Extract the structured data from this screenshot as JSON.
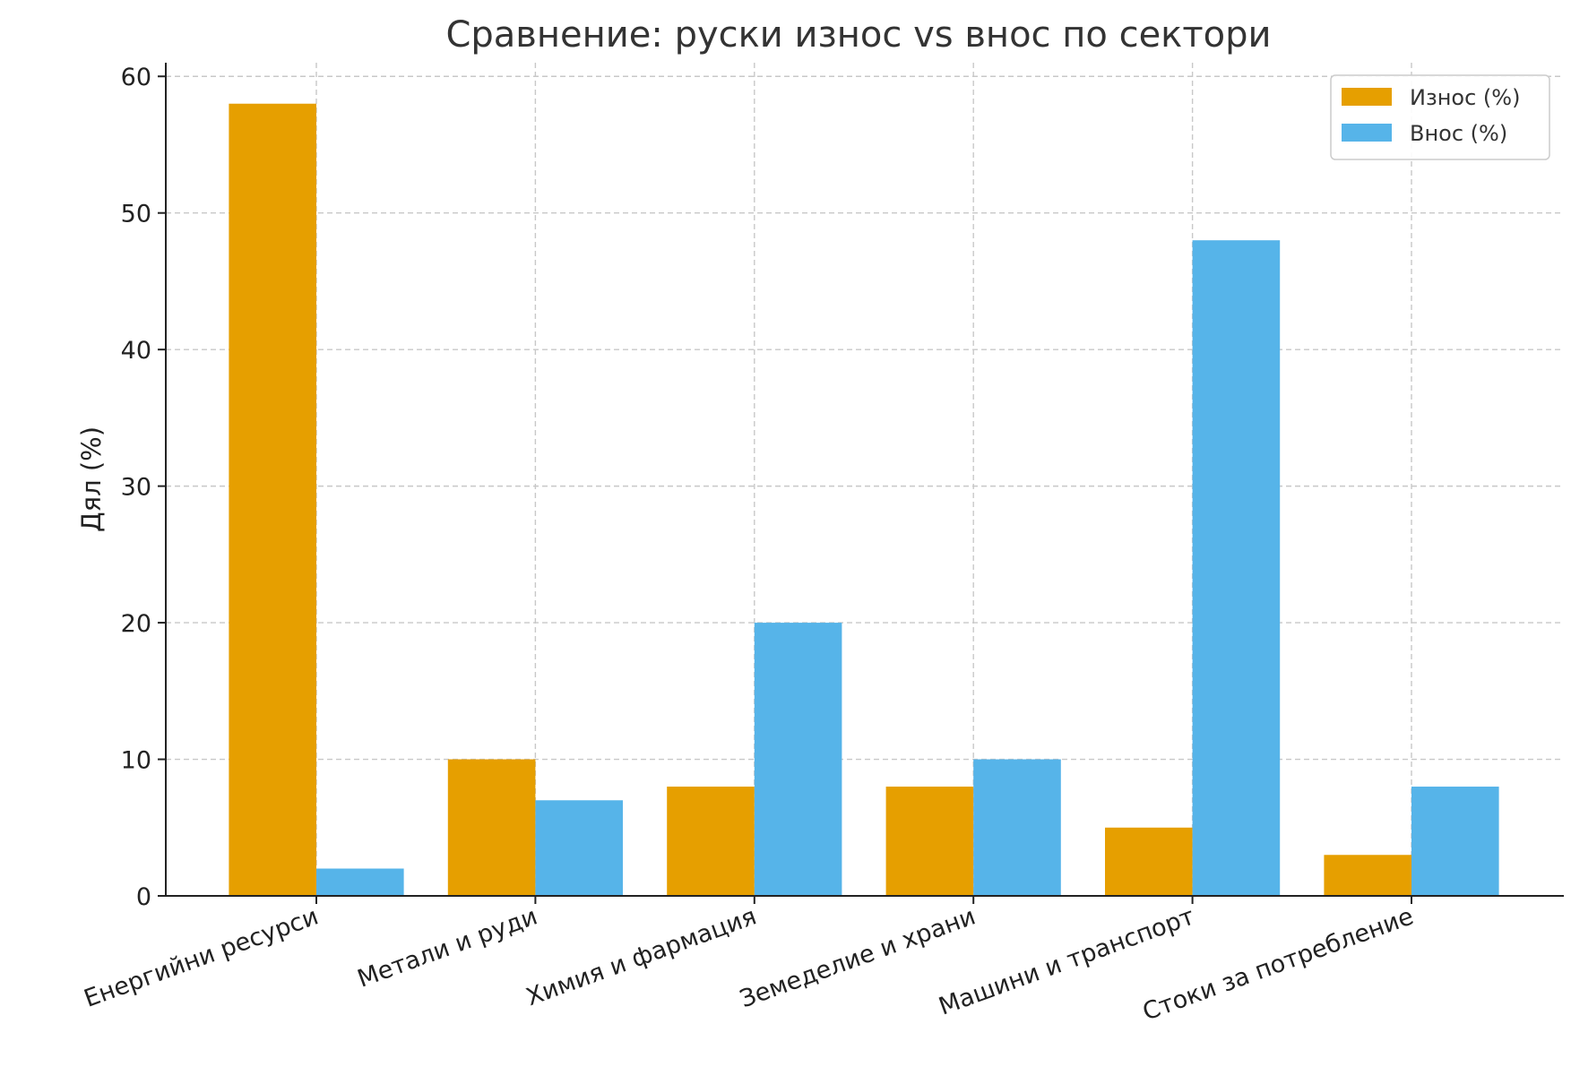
{
  "chart_data": {
    "type": "bar",
    "title": "Сравнение: руски износ vs внос по сектори",
    "xlabel": "",
    "ylabel": "Дял (%)",
    "categories": [
      "Енергийни ресурси",
      "Метали и руди",
      "Химия и фармация",
      "Земеделие и храни",
      "Машини и транспорт",
      "Стоки за потребление"
    ],
    "series": [
      {
        "name": "Износ (%)",
        "values": [
          58,
          10,
          8,
          8,
          5,
          3
        ],
        "color": "#E69F00"
      },
      {
        "name": "Внос (%)",
        "values": [
          2,
          7,
          20,
          10,
          48,
          8
        ],
        "color": "#56B4E9"
      }
    ],
    "ylim": [
      0,
      61
    ],
    "yticks": [
      0,
      10,
      20,
      30,
      40,
      50,
      60
    ],
    "grid": true,
    "legend_position": "top-right"
  }
}
